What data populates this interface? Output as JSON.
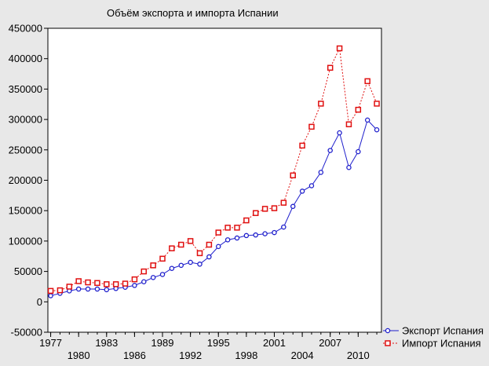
{
  "chart_data": {
    "type": "line",
    "title": "Объём экспорта и импорта Испании",
    "xlabel": "",
    "ylabel": "",
    "xlim": [
      1976.7,
      2012.5
    ],
    "ylim": [
      -50000,
      450000
    ],
    "y_ticks": [
      -50000,
      0,
      50000,
      100000,
      150000,
      200000,
      250000,
      300000,
      350000,
      400000,
      450000
    ],
    "x_ticks_upper": [
      1977,
      1983,
      1989,
      1995,
      2001,
      2007
    ],
    "x_ticks_lower": [
      1980,
      1986,
      1992,
      1998,
      2004,
      2010
    ],
    "grid": false,
    "legend_position": "bottom-right",
    "x": [
      1977,
      1978,
      1979,
      1980,
      1981,
      1982,
      1983,
      1984,
      1985,
      1986,
      1987,
      1988,
      1989,
      1990,
      1991,
      1992,
      1993,
      1994,
      1995,
      1996,
      1997,
      1998,
      1999,
      2000,
      2001,
      2002,
      2003,
      2004,
      2005,
      2006,
      2007,
      2008,
      2009,
      2010,
      2011,
      2012
    ],
    "series": [
      {
        "name": "Экспорт Испания",
        "color": "#1f1fcc",
        "marker": "circle",
        "line_style": "solid",
        "values": [
          10000,
          14000,
          18000,
          21000,
          21000,
          21000,
          20000,
          22000,
          24000,
          27000,
          33000,
          40000,
          45000,
          55000,
          60000,
          65000,
          62000,
          74000,
          91000,
          102000,
          105000,
          109000,
          110000,
          112000,
          114000,
          123000,
          157000,
          182000,
          191000,
          213000,
          249000,
          278000,
          221000,
          247000,
          299000,
          283000
        ]
      },
      {
        "name": "Импорт Испания",
        "color": "#e01010",
        "marker": "square",
        "line_style": "dotted",
        "values": [
          18000,
          19000,
          25000,
          34000,
          32000,
          31000,
          29000,
          29000,
          30000,
          37000,
          50000,
          60000,
          71000,
          88000,
          94000,
          100000,
          80000,
          94000,
          114000,
          122000,
          122000,
          134000,
          146000,
          153000,
          154000,
          163000,
          208000,
          257000,
          288000,
          326000,
          385000,
          417000,
          292000,
          316000,
          363000,
          326000
        ]
      }
    ]
  }
}
